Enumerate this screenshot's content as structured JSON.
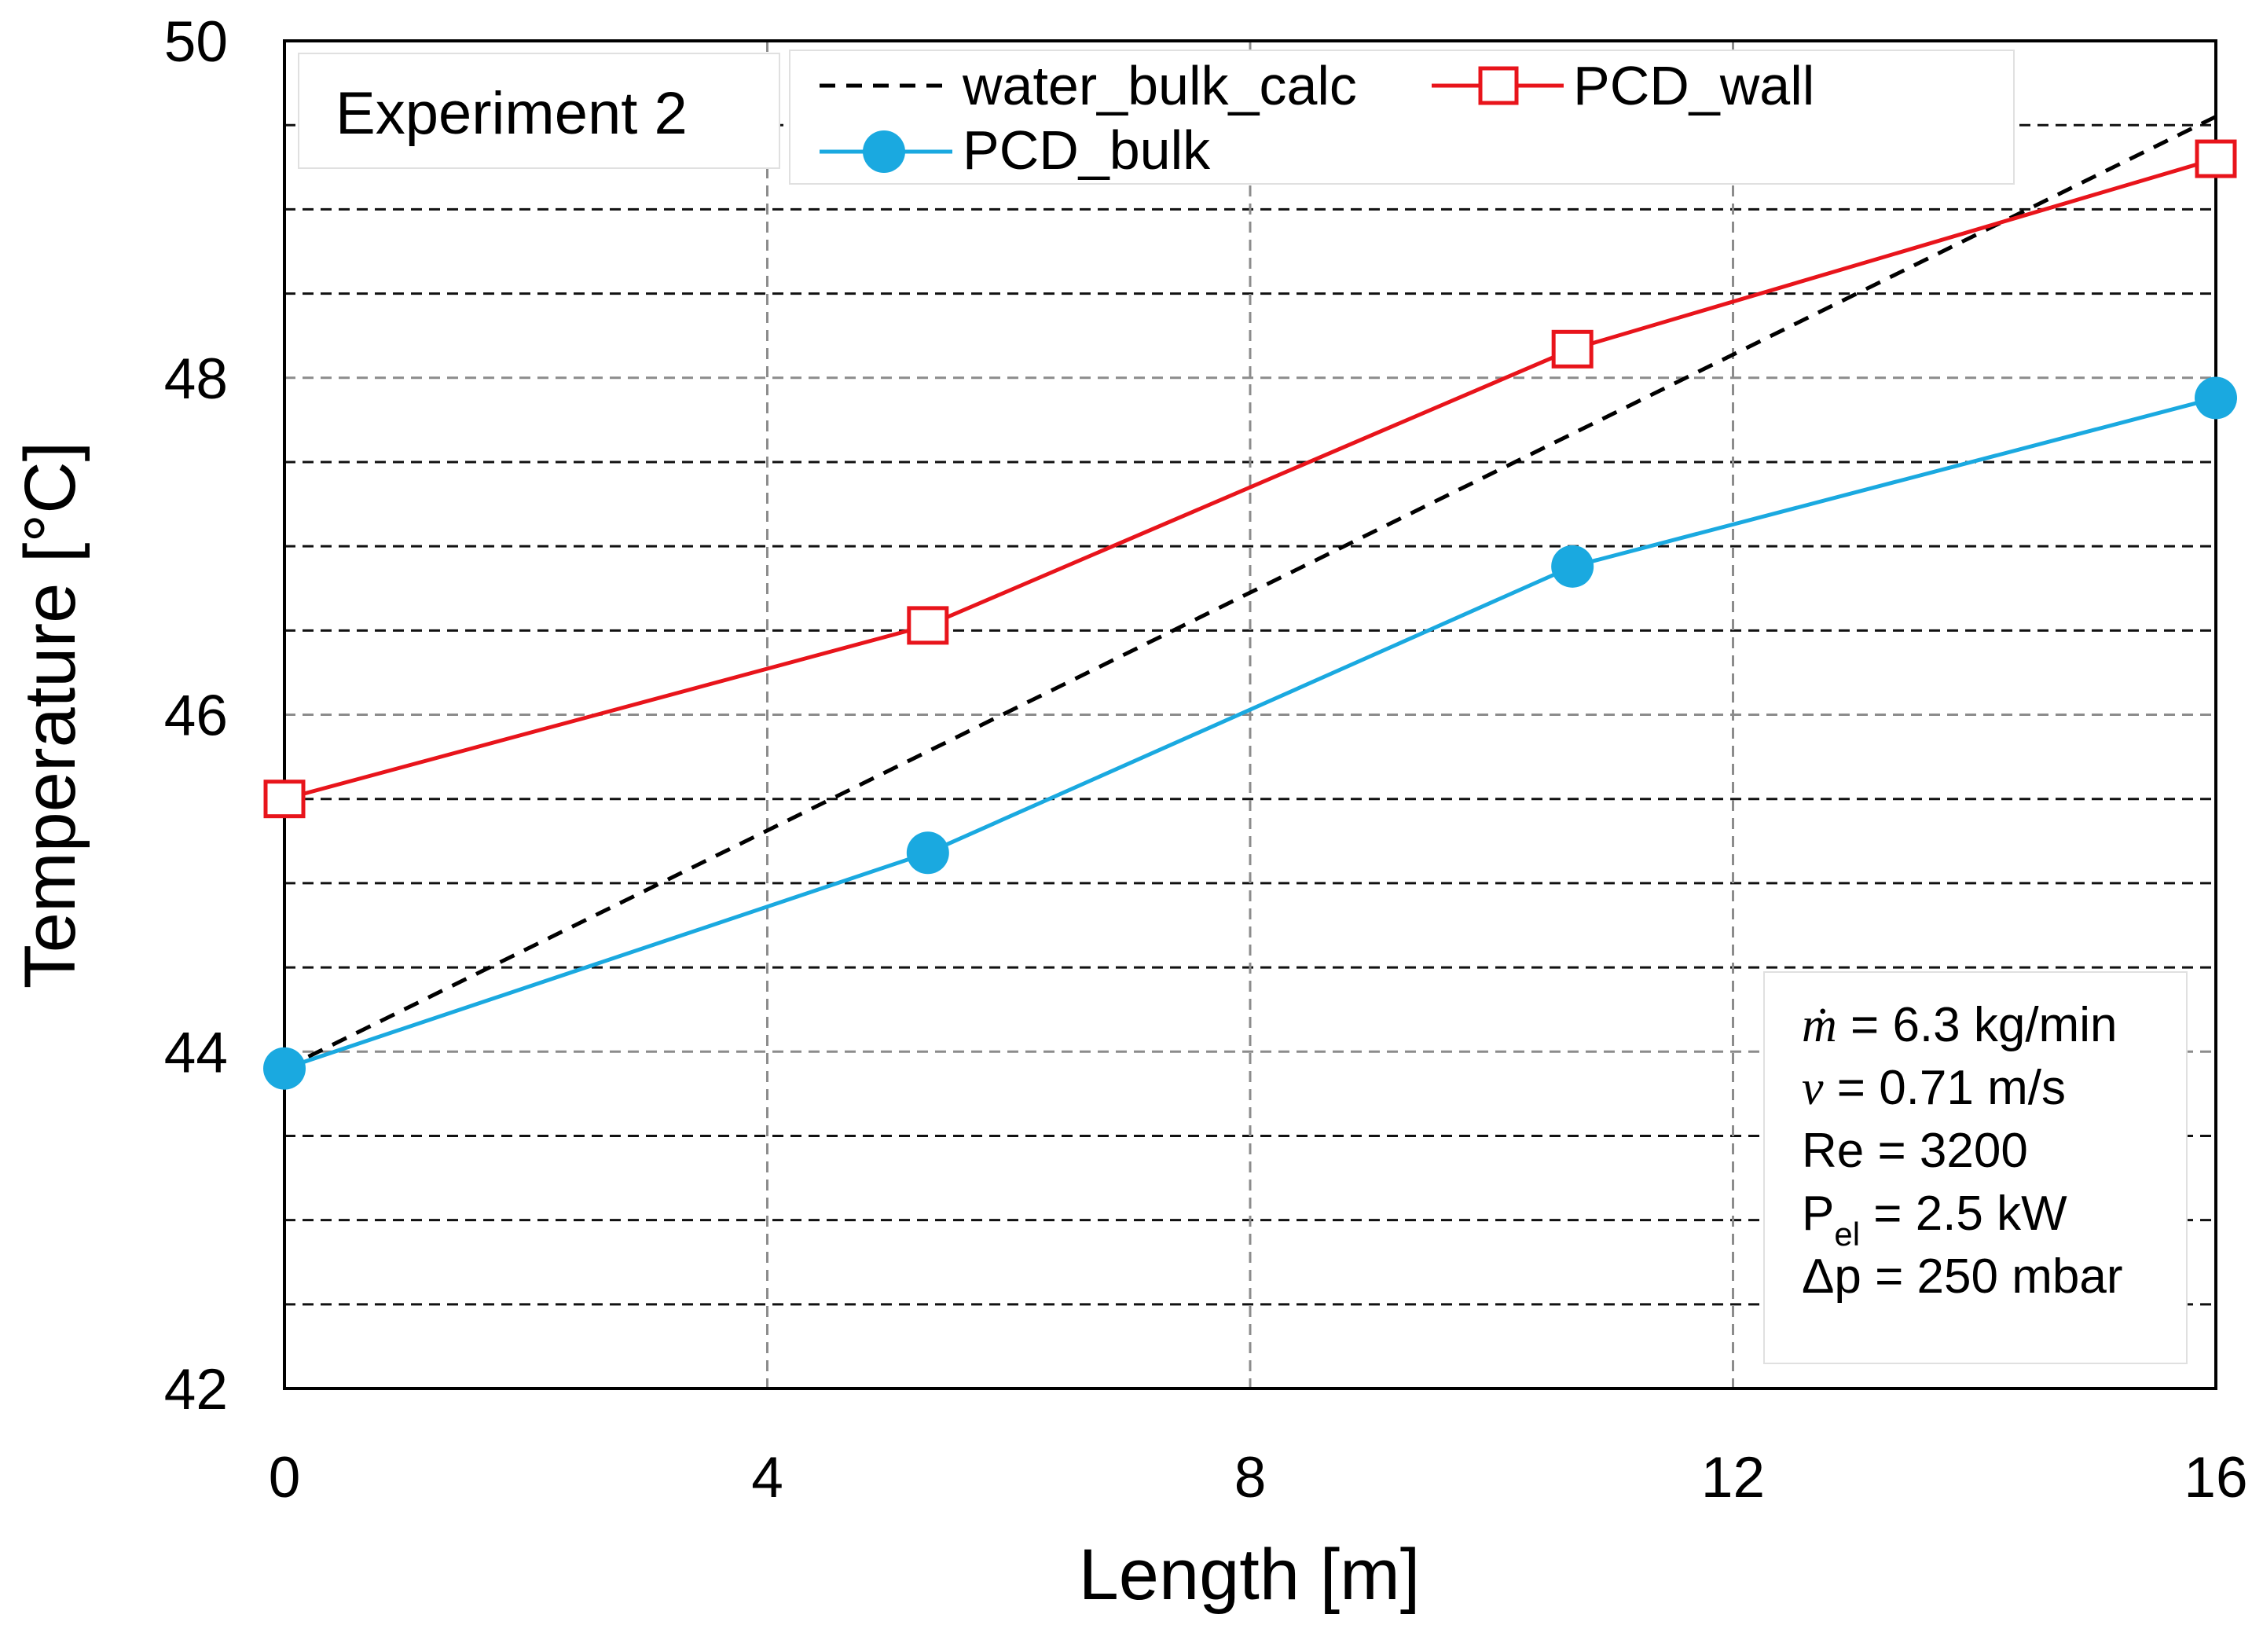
{
  "chart_data": {
    "type": "line",
    "title": "",
    "xlabel": "Length [m]",
    "ylabel": "Temperature [°C]",
    "xlim": [
      0,
      16
    ],
    "ylim": [
      42,
      50
    ],
    "x_ticks": [
      "0",
      "4",
      "8",
      "12",
      "16"
    ],
    "y_ticks": [
      "42",
      "44",
      "46",
      "48",
      "50"
    ],
    "x_grid_values": [
      4,
      8,
      12
    ],
    "y_grid_values": [
      42.5,
      43,
      43.5,
      44,
      44.5,
      45,
      45.5,
      46,
      46.5,
      47,
      47.5,
      48,
      48.5,
      49,
      49.5
    ],
    "grid": true,
    "series": [
      {
        "name": "water_bulk_calc",
        "style": "dashed",
        "marker": "none",
        "color": "#000000",
        "x": [
          0,
          16
        ],
        "y": [
          43.9,
          49.55
        ]
      },
      {
        "name": "PCD_wall",
        "style": "solid",
        "marker": "open-square",
        "color": "#e8141b",
        "x": [
          0,
          5.33,
          10.67,
          16
        ],
        "y": [
          45.5,
          46.53,
          48.17,
          49.3
        ]
      },
      {
        "name": "PCD_bulk",
        "style": "solid",
        "marker": "filled-circle",
        "color": "#1aa9e0",
        "x": [
          0,
          5.33,
          10.67,
          16
        ],
        "y": [
          43.9,
          45.18,
          46.88,
          47.88
        ]
      }
    ],
    "legend": {
      "position": "top",
      "entries": [
        "water_bulk_calc",
        "PCD_wall",
        "PCD_bulk"
      ]
    },
    "annotations": {
      "experiment_label": "Experiment 2",
      "parameters": {
        "mdot_symbol": "ṁ",
        "mdot_value": " = 6.3 kg/min",
        "v_symbol": "v",
        "v_value": " = 0.71 m/s",
        "re_line": "Re = 3200",
        "pel_main": "P",
        "pel_sub": "el",
        "pel_value": " = 2.5 kW",
        "dp_line": "Δp = 250 mbar"
      }
    }
  }
}
